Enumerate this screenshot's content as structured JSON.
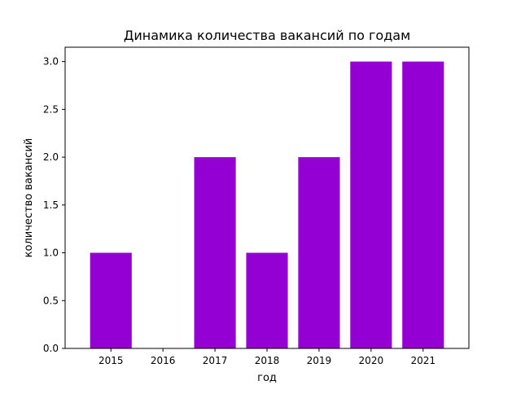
{
  "chart_data": {
    "type": "bar",
    "title": "Динамика количества вакансий по годам",
    "xlabel": "год",
    "ylabel": "количество вакансий",
    "categories": [
      "2015",
      "2016",
      "2017",
      "2018",
      "2019",
      "2020",
      "2021"
    ],
    "values": [
      1,
      0,
      2,
      1,
      2,
      3,
      3
    ],
    "ylim": [
      0,
      3.15
    ],
    "yticks": [
      "0.0",
      "0.5",
      "1.0",
      "1.5",
      "2.0",
      "2.5",
      "3.0"
    ],
    "bar_color": "#9400D3",
    "grid": false,
    "legend": "none"
  }
}
